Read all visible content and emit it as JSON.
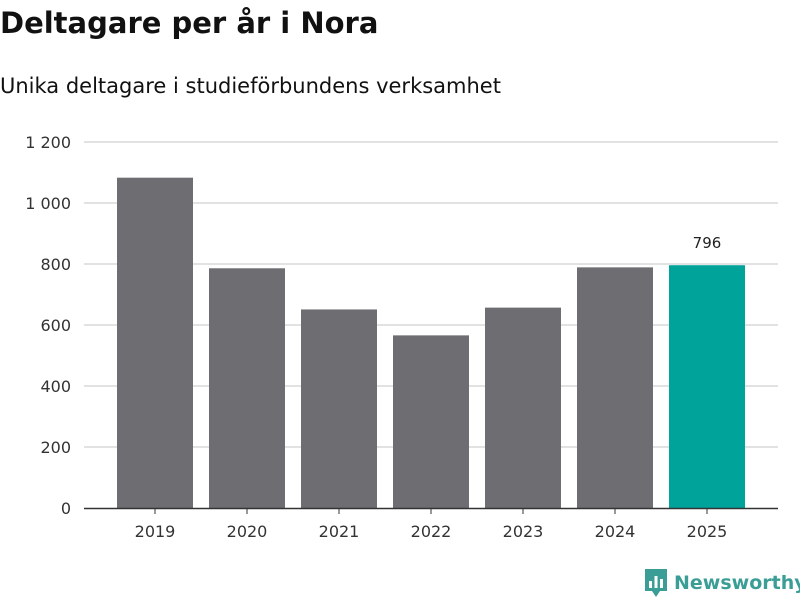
{
  "header": {
    "title": "Deltagare per år i Nora",
    "subtitle": "Unika deltagare i studieförbundens verksamhet"
  },
  "colors": {
    "bar_default": "#6e6d72",
    "bar_highlight": "#00a39a",
    "grid": "#d9d9d9",
    "axis": "#333333",
    "brand": "#3a9e96"
  },
  "chart_data": {
    "type": "bar",
    "title": "Deltagare per år i Nora",
    "subtitle": "Unika deltagare i studieförbundens verksamhet",
    "xlabel": "",
    "ylabel": "",
    "categories": [
      "2019",
      "2020",
      "2021",
      "2022",
      "2023",
      "2024",
      "2025"
    ],
    "values": [
      1083,
      786,
      651,
      566,
      657,
      789,
      796
    ],
    "highlight_index": 6,
    "data_labels": [
      {
        "index": 6,
        "text": "796"
      }
    ],
    "ylim": [
      0,
      1200
    ],
    "yticks": [
      0,
      200,
      400,
      600,
      800,
      1000,
      1200
    ],
    "ytick_labels": [
      "0",
      "200",
      "400",
      "600",
      "800",
      "1 000",
      "1 200"
    ],
    "grid": true,
    "legend": "none"
  },
  "branding": {
    "logo_text": "Newsworthy",
    "logo_icon": "newsworthy-chart-icon"
  }
}
